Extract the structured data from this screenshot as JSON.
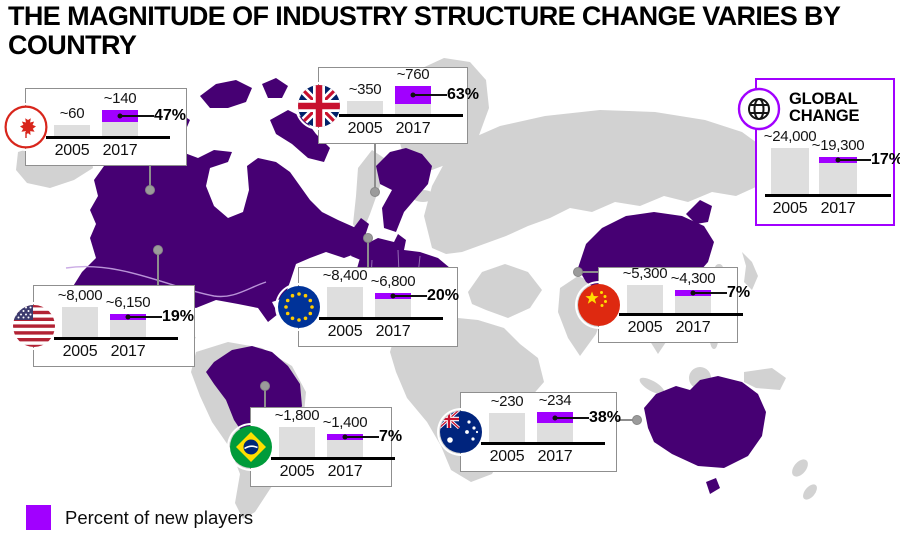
{
  "title": {
    "line1": "THE MAGNITUDE OF INDUSTRY STRUCTURE CHANGE VARIES BY",
    "line2": "COUNTRY"
  },
  "global_box": {
    "title_line1": "GLOBAL",
    "title_line2": "CHANGE"
  },
  "legend": {
    "label": "Percent of new players",
    "swatch_color": "#A100FF"
  },
  "colors": {
    "accent_purple": "#A100FF",
    "map_highlight_purple": "#460073",
    "map_gray": "#D2D2D2",
    "bar_gray": "#DEDEDE"
  },
  "chart_data": [
    {
      "type": "bar",
      "region": "Canada",
      "flag": "canada-flag",
      "categories": [
        "2005",
        "2017"
      ],
      "values": [
        60,
        140
      ],
      "value_labels": [
        "~60",
        "~140"
      ],
      "percent": 47,
      "percent_label": "47%",
      "legend": "Percent of new players"
    },
    {
      "type": "bar",
      "region": "United Kingdom",
      "flag": "uk-flag",
      "categories": [
        "2005",
        "2017"
      ],
      "values": [
        350,
        760
      ],
      "value_labels": [
        "~350",
        "~760"
      ],
      "percent": 63,
      "percent_label": "63%"
    },
    {
      "type": "bar",
      "region": "Global",
      "flag": "globe-icon",
      "categories": [
        "2005",
        "2017"
      ],
      "values": [
        24000,
        19300
      ],
      "value_labels": [
        "~24,000",
        "~19,300"
      ],
      "percent": 17,
      "percent_label": "17%"
    },
    {
      "type": "bar",
      "region": "United States",
      "flag": "usa-flag",
      "categories": [
        "2005",
        "2017"
      ],
      "values": [
        8000,
        6150
      ],
      "value_labels": [
        "~8,000",
        "~6,150"
      ],
      "percent": 19,
      "percent_label": "19%"
    },
    {
      "type": "bar",
      "region": "European Union",
      "flag": "eu-flag",
      "categories": [
        "2005",
        "2017"
      ],
      "values": [
        8400,
        6800
      ],
      "value_labels": [
        "~8,400",
        "~6,800"
      ],
      "percent": 20,
      "percent_label": "20%"
    },
    {
      "type": "bar",
      "region": "China",
      "flag": "china-flag",
      "categories": [
        "2005",
        "2017"
      ],
      "values": [
        5300,
        4300
      ],
      "value_labels": [
        "~5,300",
        "~4,300"
      ],
      "percent": 7,
      "percent_label": "7%"
    },
    {
      "type": "bar",
      "region": "Brazil",
      "flag": "brazil-flag",
      "categories": [
        "2005",
        "2017"
      ],
      "values": [
        1800,
        1400
      ],
      "value_labels": [
        "~1,800",
        "~1,400"
      ],
      "percent": 7,
      "percent_label": "7%"
    },
    {
      "type": "bar",
      "region": "Australia",
      "flag": "australia-flag",
      "categories": [
        "2005",
        "2017"
      ],
      "values": [
        230,
        234
      ],
      "value_labels": [
        "~230",
        "~234"
      ],
      "percent": 38,
      "percent_label": "38%"
    }
  ]
}
